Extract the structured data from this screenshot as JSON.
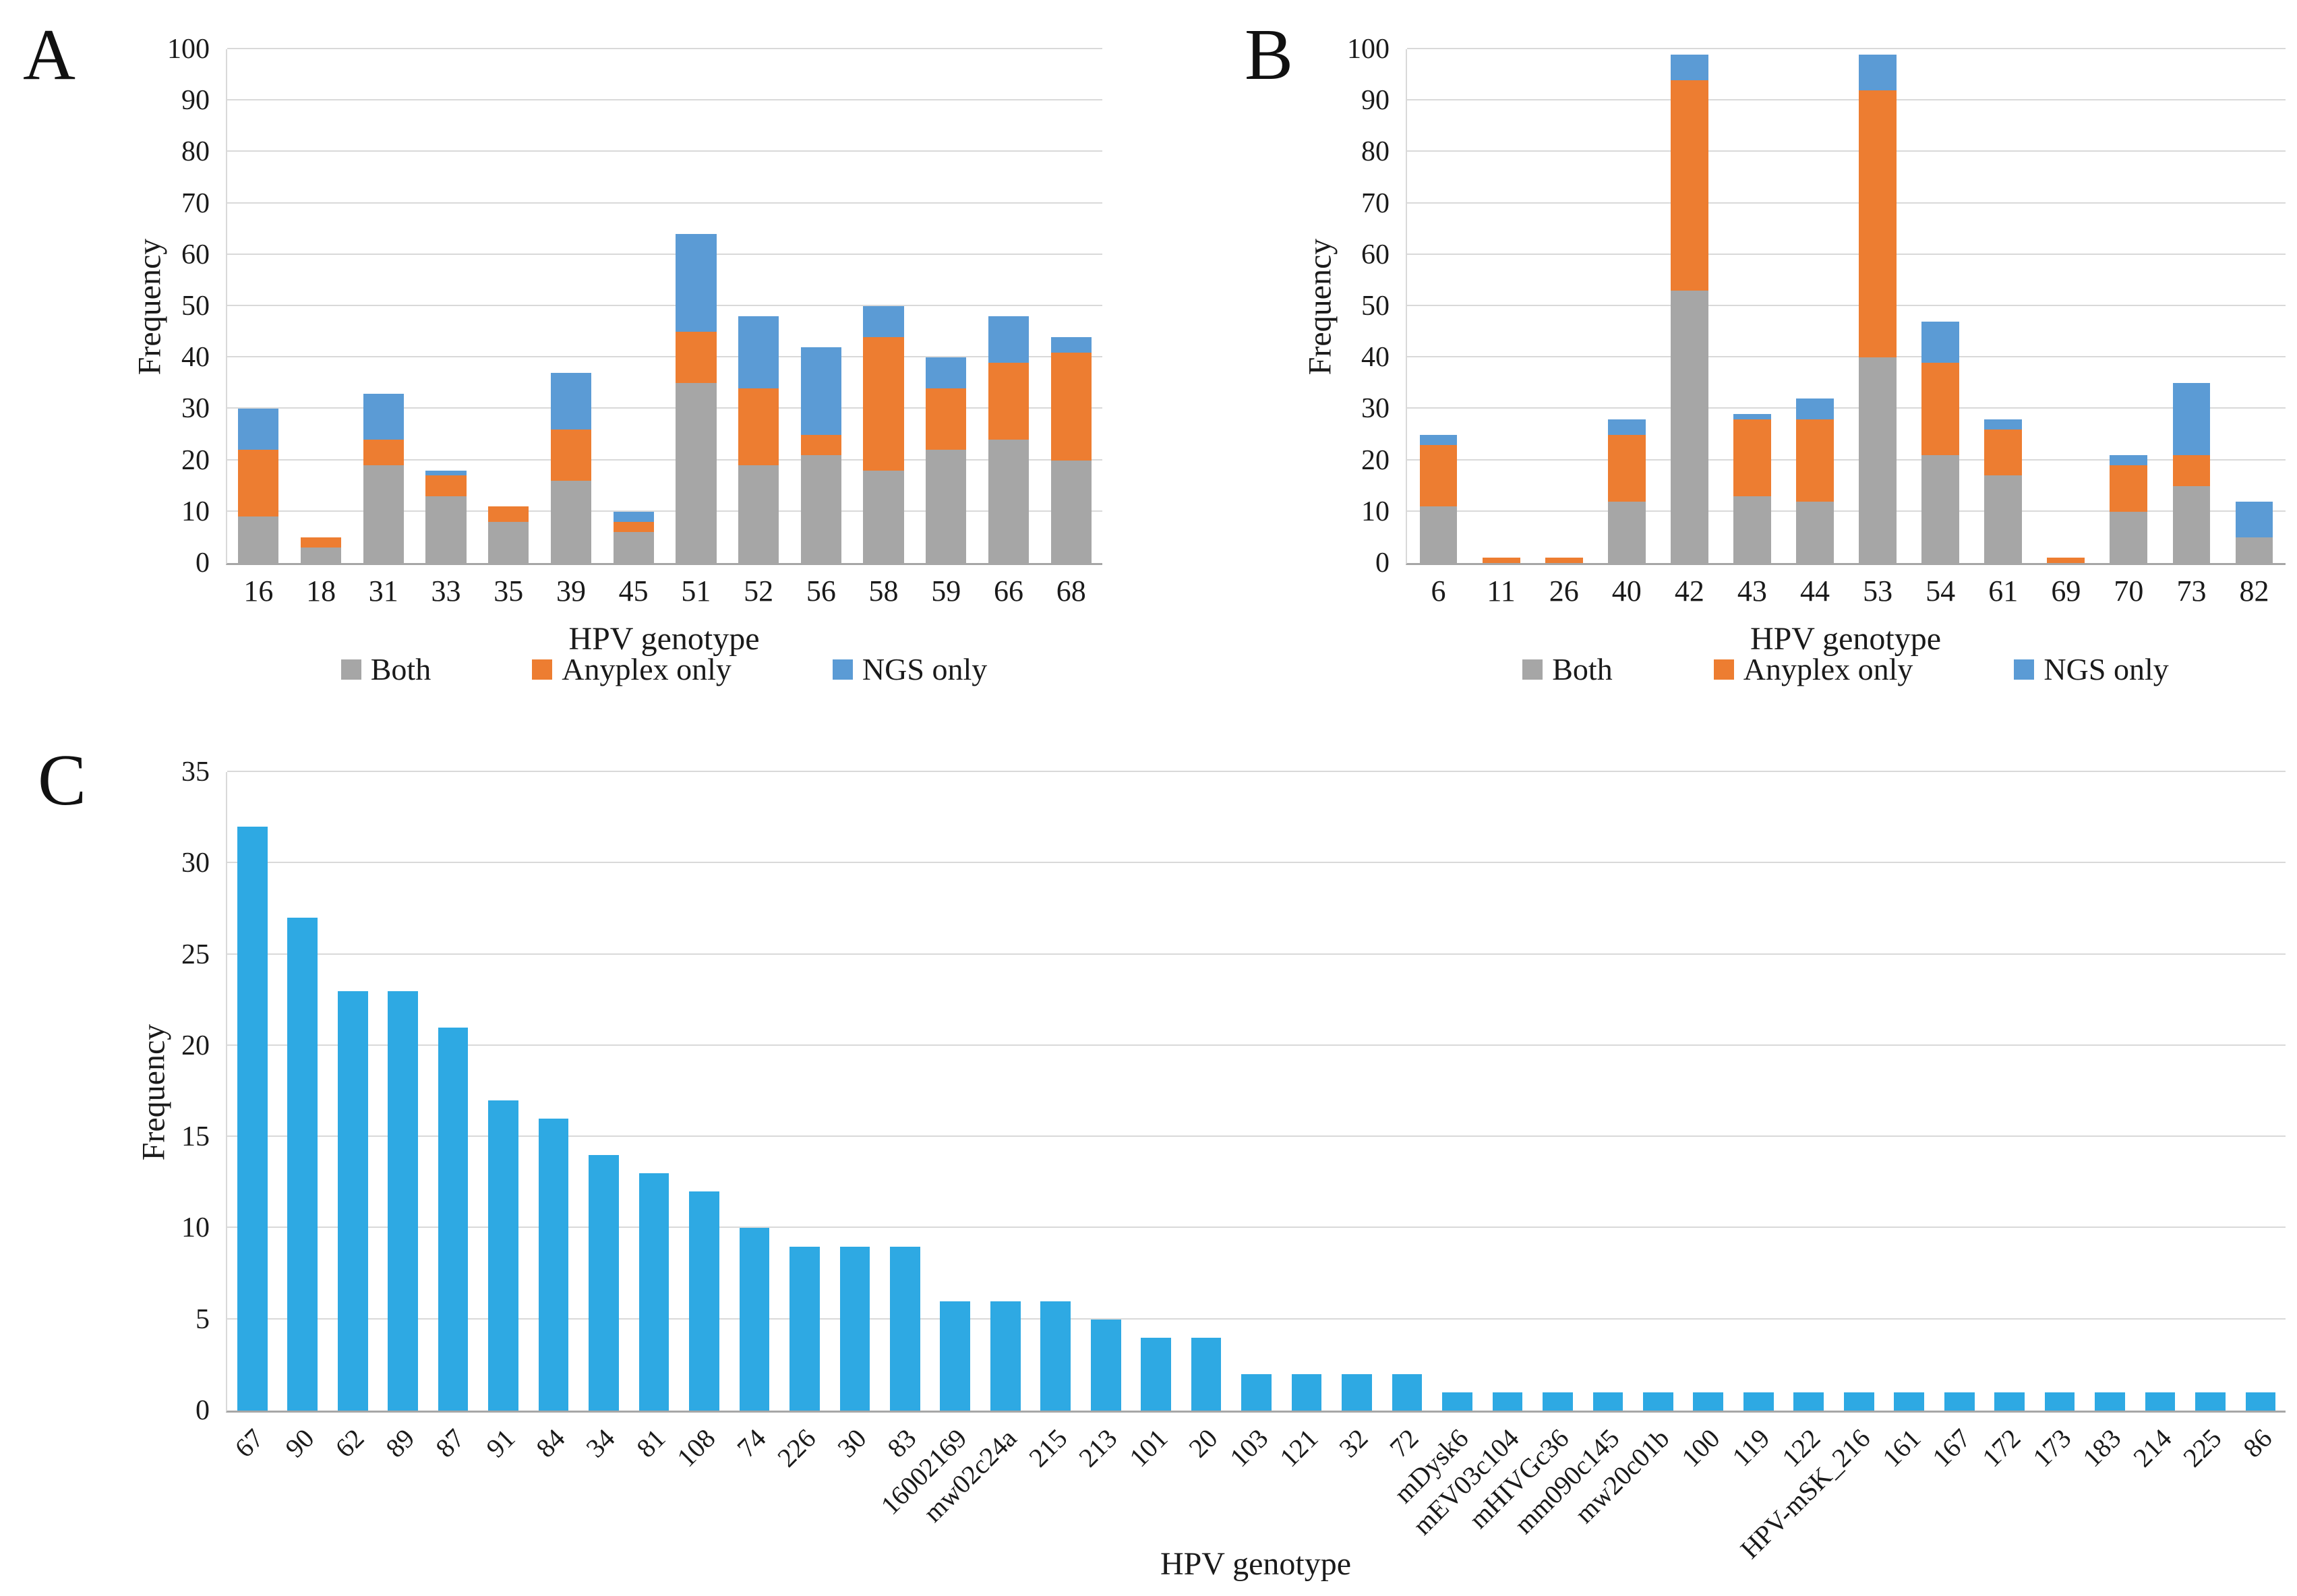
{
  "figure": {
    "background": "#ffffff"
  },
  "axis_style": {
    "grid_color": "#d9d9d9",
    "axis_color": "#a6a6a6",
    "text_color": "#1a1a1a"
  },
  "chart_data": [
    {
      "panel": "A",
      "type": "bar",
      "stacked": true,
      "xlabel": "HPV genotype",
      "ylabel": "Frequency",
      "ylim": [
        0,
        100
      ],
      "ytick_step": 10,
      "grid": true,
      "legend_position": "bottom",
      "categories": [
        "16",
        "18",
        "31",
        "33",
        "35",
        "39",
        "45",
        "51",
        "52",
        "56",
        "58",
        "59",
        "66",
        "68"
      ],
      "series": [
        {
          "name": "Both",
          "color": "#A6A6A6",
          "values": [
            9,
            3,
            19,
            13,
            8,
            16,
            6,
            35,
            19,
            21,
            18,
            22,
            24,
            20
          ]
        },
        {
          "name": "Anyplex only",
          "color": "#ED7D31",
          "values": [
            13,
            2,
            5,
            4,
            3,
            10,
            2,
            10,
            15,
            4,
            26,
            12,
            15,
            21
          ]
        },
        {
          "name": "NGS only",
          "color": "#5B9BD5",
          "values": [
            8,
            0,
            9,
            1,
            0,
            11,
            2,
            19,
            14,
            17,
            6,
            6,
            9,
            3
          ]
        }
      ]
    },
    {
      "panel": "B",
      "type": "bar",
      "stacked": true,
      "xlabel": "HPV genotype",
      "ylabel": "Frequency",
      "ylim": [
        0,
        100
      ],
      "ytick_step": 10,
      "grid": true,
      "legend_position": "bottom",
      "categories": [
        "6",
        "11",
        "26",
        "40",
        "42",
        "43",
        "44",
        "53",
        "54",
        "61",
        "69",
        "70",
        "73",
        "82"
      ],
      "series": [
        {
          "name": "Both",
          "color": "#A6A6A6",
          "values": [
            11,
            0,
            0,
            12,
            53,
            13,
            12,
            40,
            21,
            17,
            0,
            10,
            15,
            5
          ]
        },
        {
          "name": "Anyplex only",
          "color": "#ED7D31",
          "values": [
            12,
            1,
            1,
            13,
            41,
            15,
            16,
            52,
            18,
            9,
            1,
            9,
            6,
            0
          ]
        },
        {
          "name": "NGS only",
          "color": "#5B9BD5",
          "values": [
            2,
            0,
            0,
            3,
            5,
            1,
            4,
            7,
            8,
            2,
            0,
            2,
            14,
            7
          ]
        }
      ]
    },
    {
      "panel": "C",
      "type": "bar",
      "stacked": false,
      "xlabel": "HPV genotype",
      "ylabel": "Frequency",
      "ylim": [
        0,
        35
      ],
      "ytick_step": 5,
      "grid": true,
      "bar_color": "#2EA9E3",
      "categories": [
        "67",
        "90",
        "62",
        "89",
        "87",
        "91",
        "84",
        "34",
        "81",
        "108",
        "74",
        "226",
        "30",
        "83",
        "16002169",
        "mw02c24a",
        "215",
        "213",
        "101",
        "20",
        "103",
        "121",
        "32",
        "72",
        "mDysk6",
        "mEV03c104",
        "mHIVGc36",
        "mm090c145",
        "mw20c01b",
        "100",
        "119",
        "122",
        "HPV-mSK_216",
        "161",
        "167",
        "172",
        "173",
        "183",
        "214",
        "225",
        "86"
      ],
      "values": [
        32,
        27,
        23,
        23,
        21,
        17,
        16,
        14,
        13,
        12,
        10,
        9,
        9,
        9,
        6,
        6,
        6,
        5,
        4,
        4,
        2,
        2,
        2,
        2,
        1,
        1,
        1,
        1,
        1,
        1,
        1,
        1,
        1,
        1,
        1,
        1,
        1,
        1,
        1,
        1,
        1
      ]
    }
  ]
}
